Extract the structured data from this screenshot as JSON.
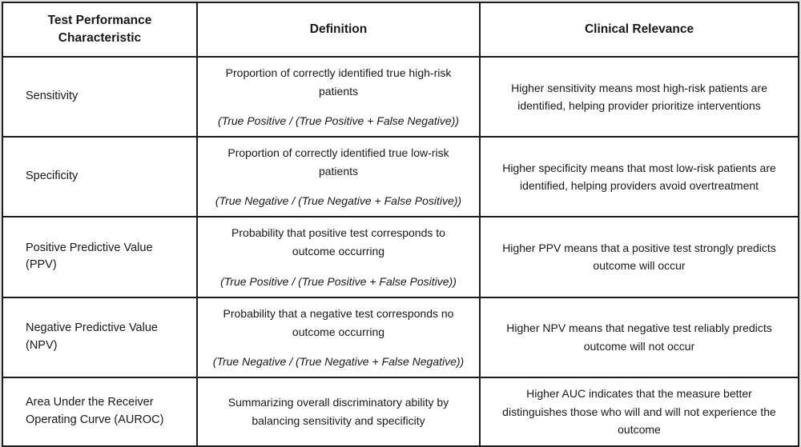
{
  "colors": {
    "border": "#1c1c1c",
    "text": "#181818",
    "cell_background": "#ffffff",
    "page_background": "#e2e2e2"
  },
  "table": {
    "headers": {
      "characteristic": "Test Performance\nCharacteristic",
      "definition": "Definition",
      "clinical_relevance": "Clinical Relevance"
    },
    "rows": [
      {
        "characteristic": "Sensitivity",
        "definition": "Proportion of correctly identified true high-risk patients",
        "formula": "(True Positive / (True Positive + False Negative))",
        "relevance": "Higher sensitivity means most high-risk patients are identified, helping provider prioritize interventions"
      },
      {
        "characteristic": "Specificity",
        "definition": "Proportion of correctly identified true low-risk patients",
        "formula": "(True Negative / (True Negative + False Positive))",
        "relevance": "Higher specificity means that most low-risk patients are identified, helping providers avoid overtreatment"
      },
      {
        "characteristic": "Positive Predictive Value (PPV)",
        "definition": "Probability that positive test corresponds to outcome occurring",
        "formula": "(True Positive / (True Positive + False Positive))",
        "relevance": "Higher PPV means that a positive test strongly predicts outcome will occur"
      },
      {
        "characteristic": "Negative Predictive Value (NPV)",
        "definition": "Probability that a negative test corresponds no outcome occurring",
        "formula": "(True Negative / (True Negative + False Negative))",
        "relevance": "Higher NPV means that negative test reliably predicts outcome will not occur"
      },
      {
        "characteristic": "Area Under the Receiver Operating Curve (AUROC)",
        "definition": "Summarizing overall discriminatory ability by balancing sensitivity and specificity",
        "formula": "",
        "relevance": "Higher AUC indicates that the measure better distinguishes those who will and will not experience the outcome"
      }
    ]
  }
}
